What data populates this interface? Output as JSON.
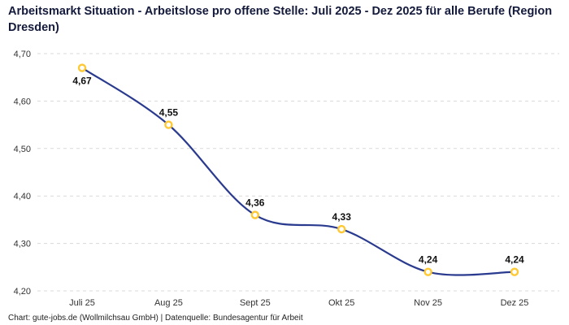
{
  "title": "Arbeitsmarkt Situation - Arbeitslose pro offene Stelle: Juli 2025 - Dez 2025 für alle Berufe (Region Dresden)",
  "footer": "Chart: gute-jobs.de (Wollmilchsau GmbH) | Datenquelle: Bundesagentur für Arbeit",
  "colors": {
    "title": "#141a3b",
    "line": "#2a3b8f",
    "marker_ring": "#ffc933",
    "marker_fill": "#ffffff",
    "gridline": "#d9d9d9"
  },
  "chart_data": {
    "type": "line",
    "title": "Arbeitsmarkt Situation - Arbeitslose pro offene Stelle: Juli 2025 - Dez 2025 für alle Berufe (Region Dresden)",
    "categories": [
      "Juli 25",
      "Aug 25",
      "Sept 25",
      "Okt 25",
      "Nov 25",
      "Dez 25"
    ],
    "values": [
      4.67,
      4.55,
      4.36,
      4.33,
      4.24,
      4.24
    ],
    "point_labels": [
      "4,67",
      "4,55",
      "4,36",
      "4,33",
      "4,24",
      "4,24"
    ],
    "label_positions": [
      "below",
      "above",
      "above",
      "above",
      "above",
      "above"
    ],
    "xlabel": "",
    "ylabel": "",
    "ylim": [
      4.2,
      4.7
    ],
    "yticks": [
      4.2,
      4.3,
      4.4,
      4.5,
      4.6,
      4.7
    ],
    "ytick_labels": [
      "4,20",
      "4,30",
      "4,40",
      "4,50",
      "4,60",
      "4,70"
    ],
    "grid": "horizontal-dashed",
    "legend": "none",
    "line_color": "#2a3b8f",
    "marker_color": "#ffc933",
    "marker_fill": "#ffffff",
    "gridline_color": "#d9d9d9"
  }
}
